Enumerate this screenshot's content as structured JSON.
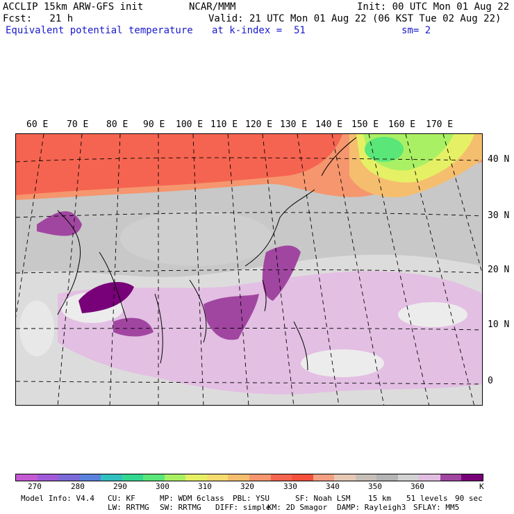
{
  "header": {
    "model": "ACCLIP 15km ARW-GFS init",
    "org": "NCAR/MMM",
    "init": "Init: 00 UTC Mon 01 Aug 22",
    "fcst": "Fcst:   21 h",
    "valid": "Valid: 21 UTC Mon 01 Aug 22 (06 KST Tue 02 Aug 22)",
    "field": "Equivalent potential temperature",
    "level": "at k-index =  51",
    "smooth": "sm= 2"
  },
  "map": {
    "lon_labels": [
      "60 E",
      "70 E",
      "80 E",
      "90 E",
      "100 E",
      "110 E",
      "120 E",
      "130 E",
      "140 E",
      "150 E",
      "160 E",
      "170 E"
    ],
    "lat_labels": [
      "40 N",
      "30 N",
      "20 N",
      "10 N",
      "0"
    ]
  },
  "colorbar": {
    "colors": [
      "#c45ad2",
      "#a05ad8",
      "#7a6ad8",
      "#5a82dc",
      "#32c0c0",
      "#32d890",
      "#5ae678",
      "#aaf064",
      "#e6f064",
      "#f5dc6e",
      "#f5be6e",
      "#f5966e",
      "#f56450",
      "#f5503c",
      "#f5a082",
      "#e6c8b4",
      "#c8c0b8",
      "#b4b4b4",
      "#d2d2d2",
      "#e1bee1",
      "#a046a0",
      "#780078"
    ],
    "labels": [
      "270",
      "280",
      "290",
      "300",
      "310",
      "320",
      "330",
      "340",
      "350",
      "360"
    ],
    "unit": "K"
  },
  "footer": {
    "line1": [
      "Model Info: V4.4",
      "CU: KF",
      "MP: WDM 6class",
      "PBL: YSU",
      "SF: Noah LSM",
      "15 km",
      "51 levels",
      "90 sec"
    ],
    "line2": [
      "LW: RRTMG",
      "SW: RRTMG",
      "DIFF: simple",
      "KM: 2D Smagor",
      "DAMP: Rayleigh3",
      "SFLAY: MM5"
    ]
  }
}
